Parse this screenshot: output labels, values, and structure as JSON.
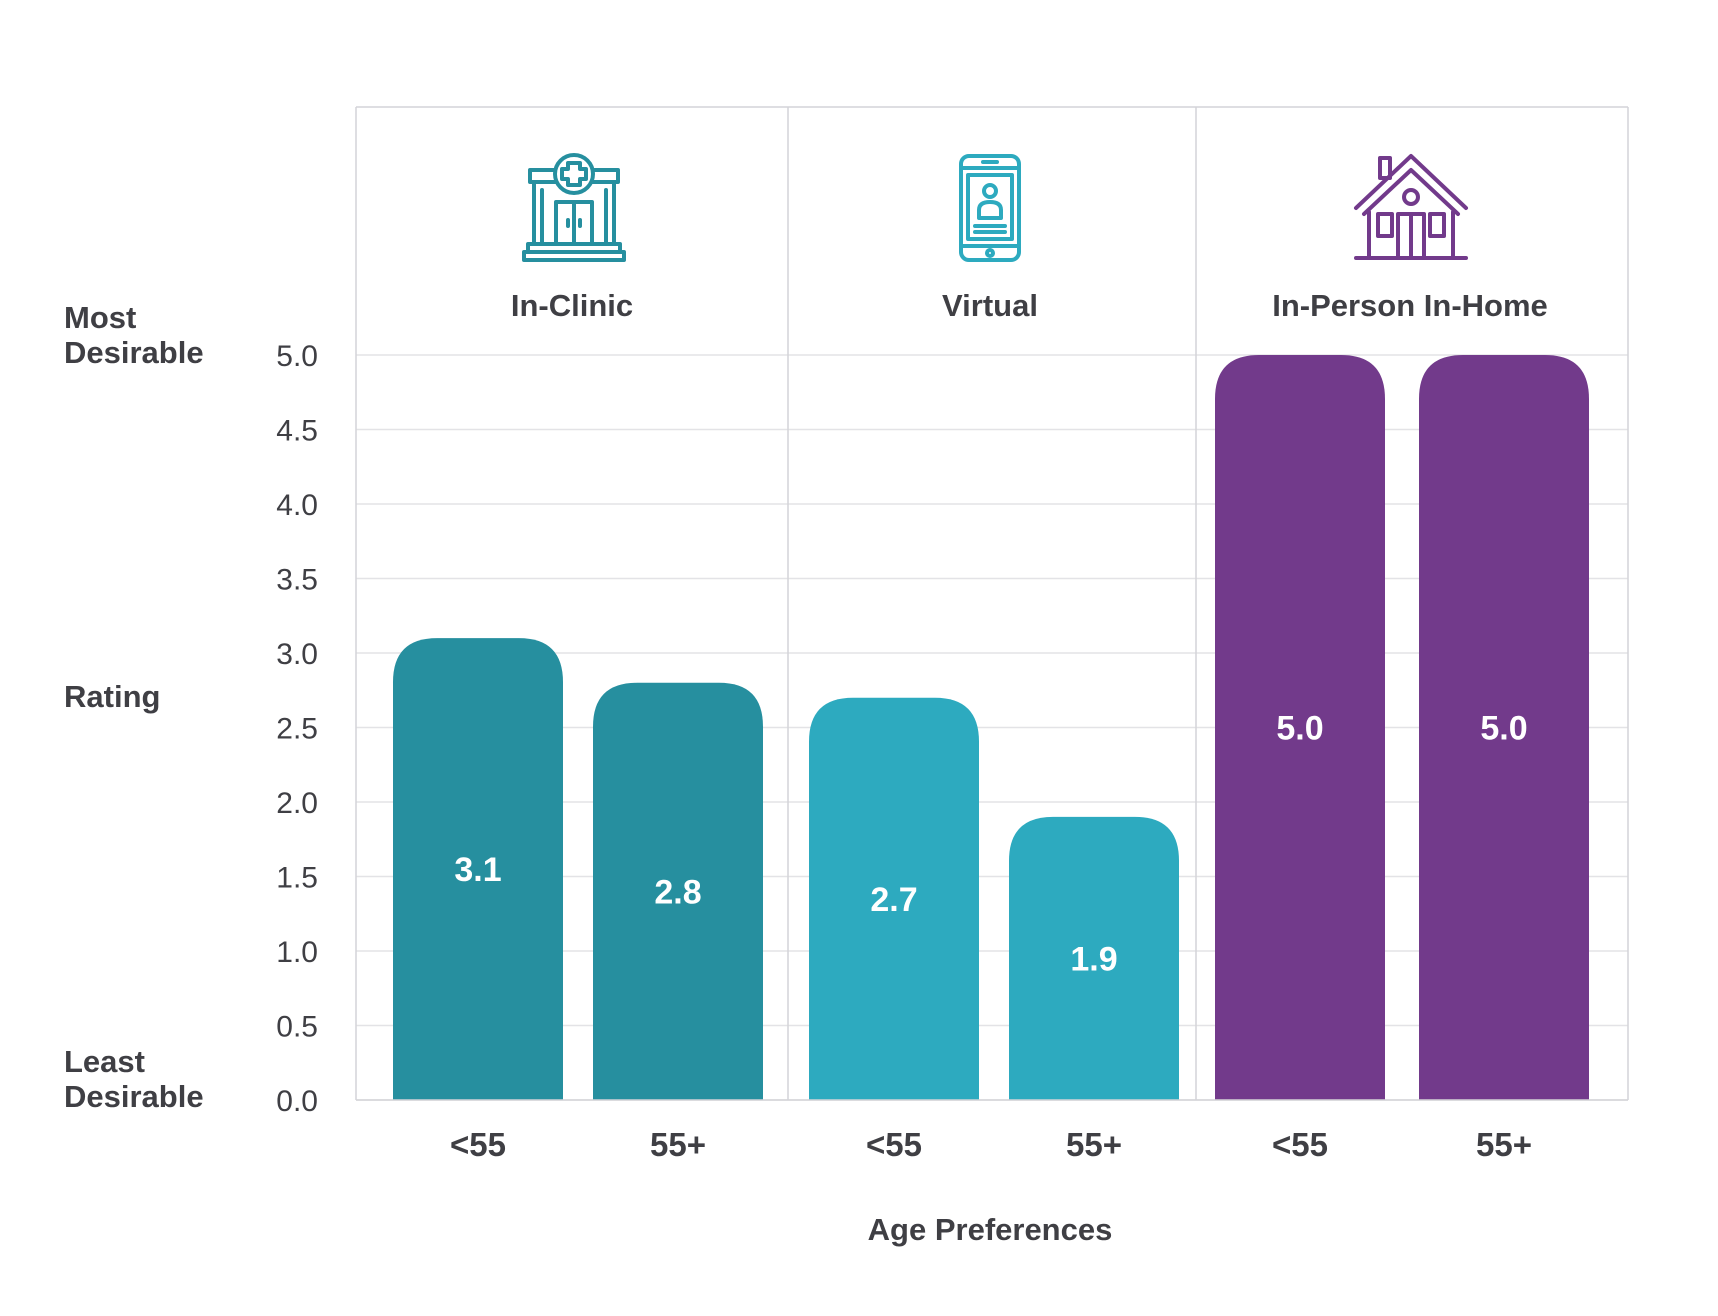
{
  "chart_data": {
    "type": "bar",
    "xlabel": "Age Preferences",
    "ylabel": "Rating",
    "ylabel_top": [
      "Most",
      "Desirable"
    ],
    "ylabel_bottom": [
      "Least",
      "Desirable"
    ],
    "ylim": [
      0,
      5
    ],
    "yticks": [
      "0.0",
      "0.5",
      "1.0",
      "1.5",
      "2.0",
      "2.5",
      "3.0",
      "3.5",
      "4.0",
      "4.5",
      "5.0"
    ],
    "grid": true,
    "groups": [
      {
        "name": "In-Clinic",
        "icon": "clinic-building-icon",
        "color": "#268f9f",
        "categories": [
          "<55",
          "55+"
        ],
        "values": [
          3.1,
          2.8
        ],
        "value_labels": [
          "3.1",
          "2.8"
        ]
      },
      {
        "name": "Virtual",
        "icon": "smartphone-doctor-icon",
        "color": "#2daabf",
        "categories": [
          "<55",
          "55+"
        ],
        "values": [
          2.7,
          1.9
        ],
        "value_labels": [
          "2.7",
          "1.9"
        ]
      },
      {
        "name": "In-Person In-Home",
        "icon": "house-icon",
        "color": "#723a8b",
        "categories": [
          "<55",
          "55+"
        ],
        "values": [
          5.0,
          5.0
        ],
        "value_labels": [
          "5.0",
          "5.0"
        ]
      }
    ]
  }
}
